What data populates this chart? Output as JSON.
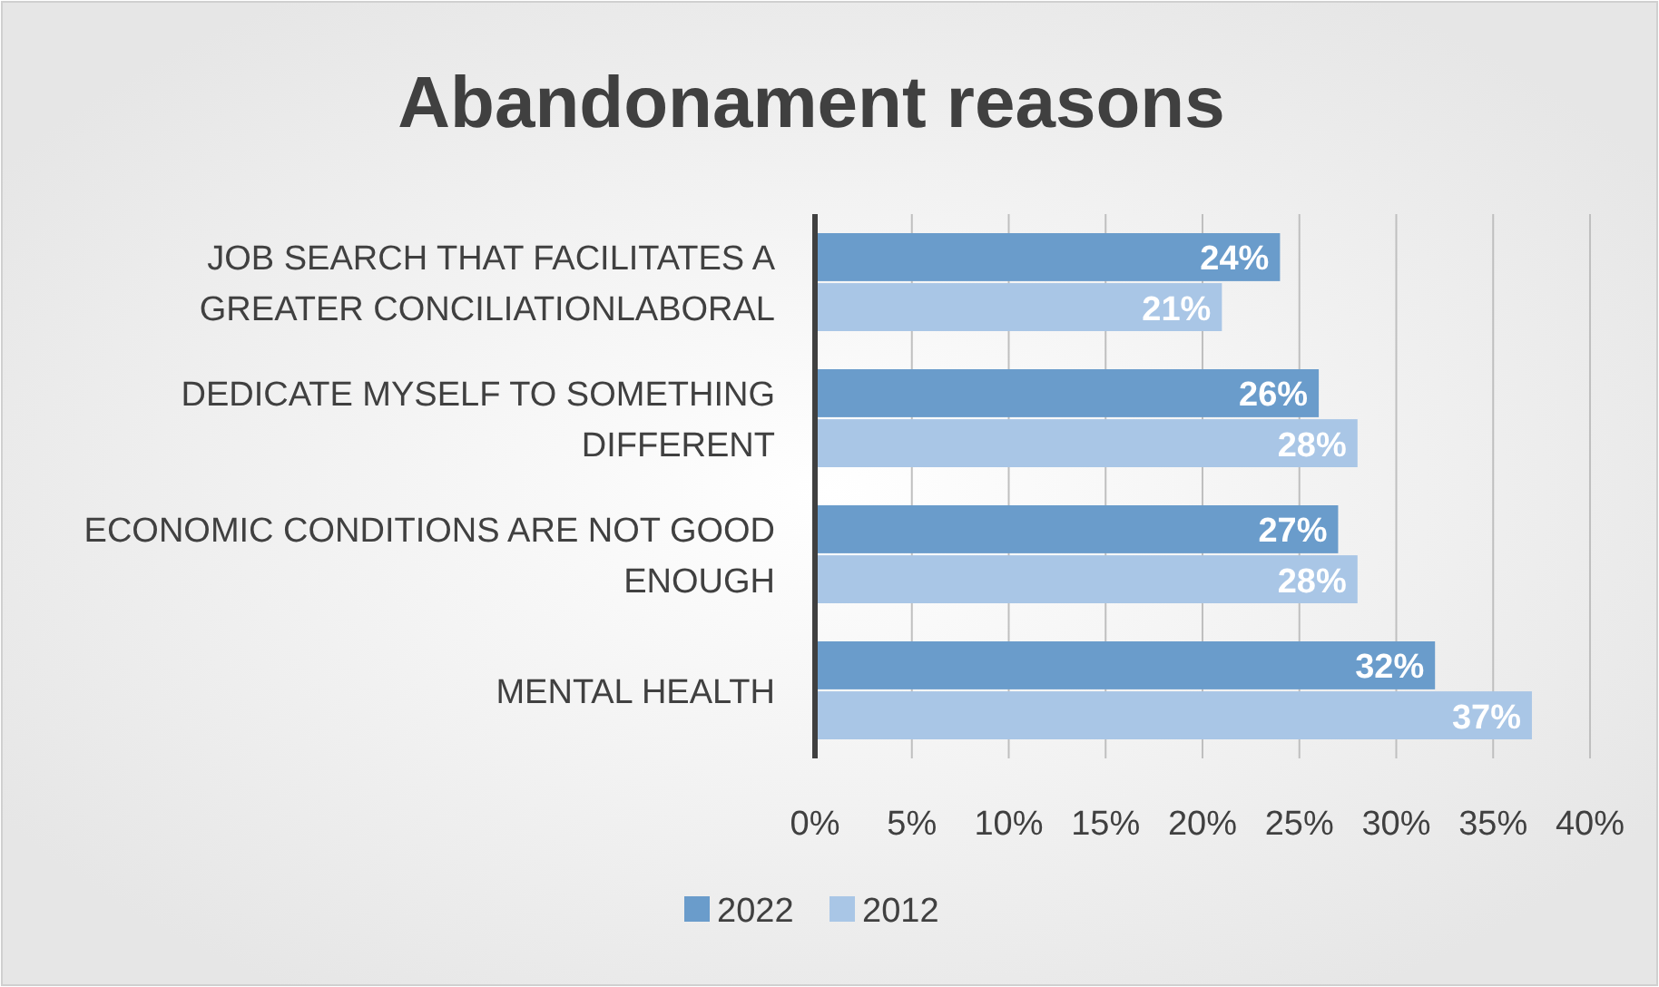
{
  "chart_data": {
    "type": "bar",
    "title": "Abandonament reasons",
    "orientation": "horizontal",
    "categories": [
      "JOB SEARCH THAT FACILITATES A GREATER CONCILIATIONLABORAL",
      "DEDICATE MYSELF TO SOMETHING DIFFERENT",
      "ECONOMIC CONDITIONS ARE NOT GOOD ENOUGH",
      "MENTAL HEALTH"
    ],
    "series": [
      {
        "name": "2022",
        "color": "#6a9ccb",
        "values": [
          24,
          26,
          27,
          32
        ],
        "value_labels": [
          "24%",
          "26%",
          "27%",
          "32%"
        ]
      },
      {
        "name": "2012",
        "color": "#a9c6e6",
        "values": [
          21,
          28,
          28,
          37
        ],
        "value_labels": [
          "21%",
          "28%",
          "28%",
          "37%"
        ]
      }
    ],
    "xlim": [
      0,
      40
    ],
    "xticks": [
      {
        "value": 0,
        "label": "0%"
      },
      {
        "value": 5,
        "label": "5%"
      },
      {
        "value": 10,
        "label": "10%"
      },
      {
        "value": 15,
        "label": "15%"
      },
      {
        "value": 20,
        "label": "20%"
      },
      {
        "value": 25,
        "label": "25%"
      },
      {
        "value": 30,
        "label": "30%"
      },
      {
        "value": 35,
        "label": "35%"
      },
      {
        "value": 40,
        "label": "40%"
      }
    ],
    "grid": "x",
    "legend": "bottom"
  }
}
